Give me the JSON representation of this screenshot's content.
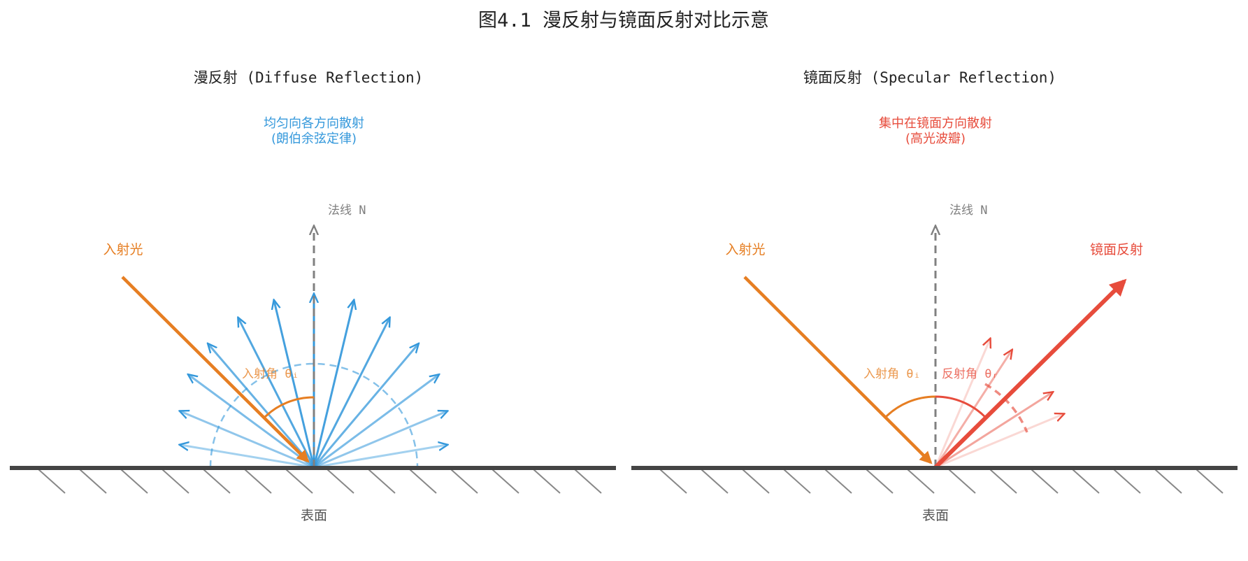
{
  "figure": {
    "title": "图4.1  漫反射与镜面反射对比示意"
  },
  "colors": {
    "incident": "#e67e22",
    "diffuse": "#3498db",
    "specular": "#e74c3c",
    "normal": "#808080",
    "surface": "#444444",
    "text": "#222222"
  },
  "left": {
    "subtitle": "漫反射 (Diffuse Reflection)",
    "note_line1": "均匀向各方向散射",
    "note_line2": "(朗伯余弦定律)",
    "normal_label": "法线 N",
    "incident_label": "入射光",
    "angle_label": "入射角 θᵢ",
    "surface_label": "表面"
  },
  "right": {
    "subtitle": "镜面反射 (Specular Reflection)",
    "note_line1": "集中在镜面方向散射",
    "note_line2": "(高光波瓣)",
    "normal_label": "法线 N",
    "incident_label": "入射光",
    "reflect_label": "镜面反射",
    "angle_in_label": "入射角 θᵢ",
    "angle_out_label": "反射角 θᵣ",
    "surface_label": "表面"
  }
}
